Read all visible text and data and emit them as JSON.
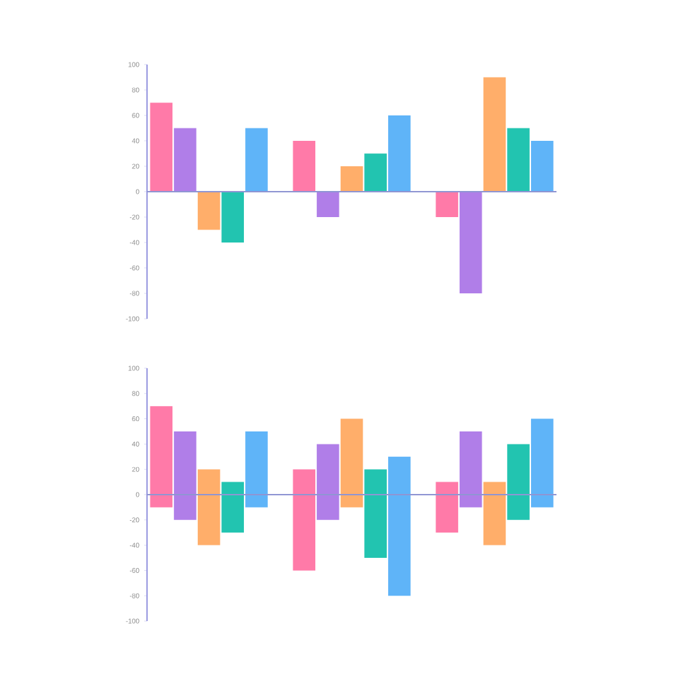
{
  "chart_data": [
    {
      "type": "bar",
      "categories": [
        null,
        null,
        null,
        null,
        null,
        null,
        null,
        null,
        null,
        null,
        null,
        null,
        null,
        null,
        null,
        null,
        null
      ],
      "values": [
        70,
        50,
        -30,
        -40,
        50,
        null,
        40,
        -20,
        20,
        30,
        60,
        null,
        -20,
        -80,
        90,
        50,
        40
      ],
      "colors": [
        "#ff7aa8",
        "#b07ee8",
        "#ffae6a",
        "#22c4b0",
        "#5fb4f8",
        null,
        "#ff7aa8",
        "#b07ee8",
        "#ffae6a",
        "#22c4b0",
        "#5fb4f8",
        null,
        "#ff7aa8",
        "#b07ee8",
        "#ffae6a",
        "#22c4b0",
        "#5fb4f8"
      ],
      "ylim": [
        -100,
        100
      ],
      "yticks": [
        -100,
        -80,
        -60,
        -40,
        -20,
        0,
        20,
        40,
        60,
        80,
        100
      ],
      "tick_labels": "y",
      "ref_lines": [
        {
          "axis": "y",
          "value": 0,
          "color": "#8f95d3"
        }
      ]
    },
    {
      "type": "bar",
      "categories": [
        null,
        null,
        null,
        null,
        null,
        null,
        null,
        null,
        null,
        null,
        null,
        null,
        null,
        null,
        null,
        null,
        null
      ],
      "base": [
        -10,
        -20,
        -40,
        -30,
        -10,
        null,
        -60,
        -20,
        -10,
        -50,
        -80,
        null,
        -30,
        -10,
        -40,
        -20,
        -10
      ],
      "values": [
        80,
        70,
        60,
        40,
        60,
        null,
        80,
        60,
        70,
        70,
        110,
        null,
        40,
        60,
        50,
        60,
        70
      ],
      "colors": [
        "#ff7aa8",
        "#b07ee8",
        "#ffae6a",
        "#22c4b0",
        "#5fb4f8",
        null,
        "#ff7aa8",
        "#b07ee8",
        "#ffae6a",
        "#22c4b0",
        "#5fb4f8",
        null,
        "#ff7aa8",
        "#b07ee8",
        "#ffae6a",
        "#22c4b0",
        "#5fb4f8"
      ],
      "ylim": [
        -100,
        100
      ],
      "yticks": [
        -100,
        -80,
        -60,
        -40,
        -20,
        0,
        20,
        40,
        60,
        80,
        100
      ],
      "tick_labels": "y",
      "ref_lines": [
        {
          "axis": "y",
          "value": 0,
          "color": "#8f95d3"
        }
      ]
    }
  ]
}
